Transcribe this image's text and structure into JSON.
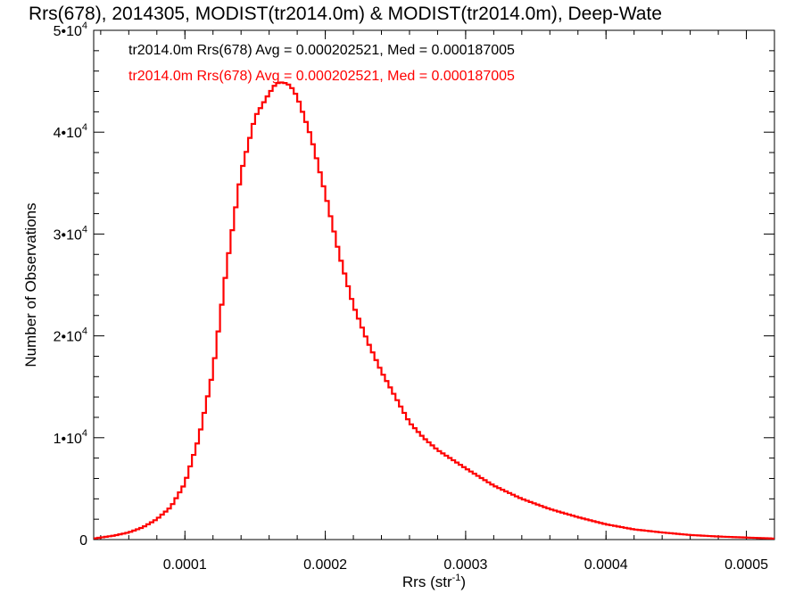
{
  "chart_data": {
    "type": "histogram",
    "title": "Rrs(678), 2014305, MODIST(tr2014.0m) & MODIST(tr2014.0m), Deep-Wate",
    "xlabel": "Rrs (str",
    "xlabel_sup": "-1",
    "xlabel_suffix": ")",
    "ylabel": "Number of Observations",
    "xlim": [
      3.5e-05,
      0.00052
    ],
    "ylim": [
      0,
      50000
    ],
    "x_ticks": [
      {
        "value": 0.0001,
        "label": "0.0001"
      },
      {
        "value": 0.0002,
        "label": "0.0002"
      },
      {
        "value": 0.0003,
        "label": "0.0003"
      },
      {
        "value": 0.0004,
        "label": "0.0004"
      },
      {
        "value": 0.0005,
        "label": "0.0005"
      }
    ],
    "y_ticks": [
      {
        "value": 0,
        "base": "0",
        "exp": ""
      },
      {
        "value": 10000,
        "base": "1•10",
        "exp": "4"
      },
      {
        "value": 20000,
        "base": "2•10",
        "exp": "4"
      },
      {
        "value": 30000,
        "base": "3•10",
        "exp": "4"
      },
      {
        "value": 40000,
        "base": "4•10",
        "exp": "4"
      },
      {
        "value": 50000,
        "base": "5•10",
        "exp": "4"
      }
    ],
    "grid": false,
    "legend": {
      "placement": "top-left",
      "entries": [
        {
          "text": "tr2014.0m Rrs(678) Avg = 0.000202521, Med = 0.000187005",
          "color": "#000000"
        },
        {
          "text": "tr2014.0m Rrs(678) Avg = 0.000202521, Med = 0.000187005",
          "color": "#ff0000"
        }
      ]
    },
    "series": [
      {
        "color": "#ff0000",
        "x": [
          3.5e-05,
          5e-05,
          6e-05,
          7e-05,
          8e-05,
          9e-05,
          0.0001,
          0.00011,
          0.00012,
          0.00013,
          0.00014,
          0.00015,
          0.00016,
          0.000165,
          0.00017,
          0.000175,
          0.00018,
          0.00019,
          0.0002,
          0.00021,
          0.00022,
          0.00023,
          0.00024,
          0.00025,
          0.00026,
          0.00027,
          0.00028,
          0.0003,
          0.00032,
          0.00034,
          0.00036,
          0.00038,
          0.0004,
          0.00042,
          0.00044,
          0.00046,
          0.00048,
          0.0005,
          0.00052
        ],
        "y": [
          100,
          400,
          700,
          1200,
          2000,
          3200,
          5500,
          10000,
          16500,
          27000,
          36000,
          41500,
          43800,
          44800,
          44900,
          44600,
          43500,
          39500,
          34000,
          28000,
          23000,
          19500,
          16500,
          14000,
          11500,
          10000,
          8800,
          7000,
          5300,
          4000,
          3000,
          2200,
          1500,
          1000,
          700,
          450,
          300,
          200,
          100
        ]
      }
    ]
  }
}
